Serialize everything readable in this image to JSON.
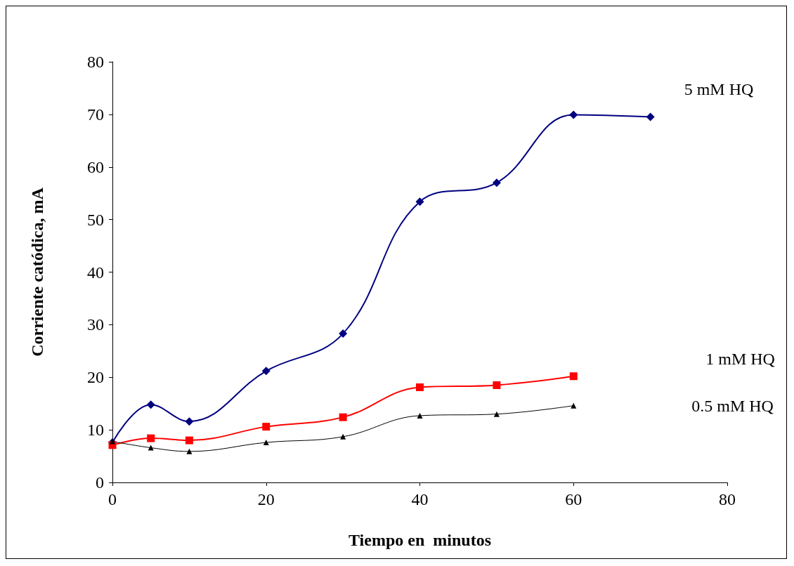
{
  "chart_data": {
    "type": "line",
    "xlabel": "Tiempo en  minutos",
    "ylabel": "Corriente catódica, mA",
    "xlim": [
      0,
      80
    ],
    "xticks": [
      0,
      20,
      40,
      60,
      80
    ],
    "ylim": [
      0,
      80
    ],
    "yticks": [
      0,
      10,
      20,
      30,
      40,
      50,
      60,
      70,
      80
    ],
    "grid": false,
    "legend": false,
    "line_style": "solid",
    "series": [
      {
        "name": "5 mM HQ",
        "color": "#000080",
        "marker": "diamond",
        "x": [
          0,
          5,
          10,
          20,
          30,
          40,
          50,
          60,
          70
        ],
        "values": [
          7.6,
          14.8,
          11.6,
          21.2,
          28.3,
          53.4,
          57.0,
          69.9,
          69.5
        ]
      },
      {
        "name": "1 mM HQ",
        "color": "#ff0000",
        "marker": "square",
        "x": [
          0,
          5,
          10,
          20,
          30,
          40,
          50,
          60
        ],
        "values": [
          7.1,
          8.4,
          8.0,
          10.6,
          12.4,
          18.1,
          18.5,
          20.2
        ]
      },
      {
        "name": "0.5 mM HQ",
        "color": "#000000",
        "marker": "triangle",
        "x": [
          0,
          5,
          10,
          20,
          30,
          40,
          50,
          60
        ],
        "values": [
          7.8,
          6.6,
          5.9,
          7.6,
          8.7,
          12.7,
          13.0,
          14.6
        ]
      }
    ]
  }
}
